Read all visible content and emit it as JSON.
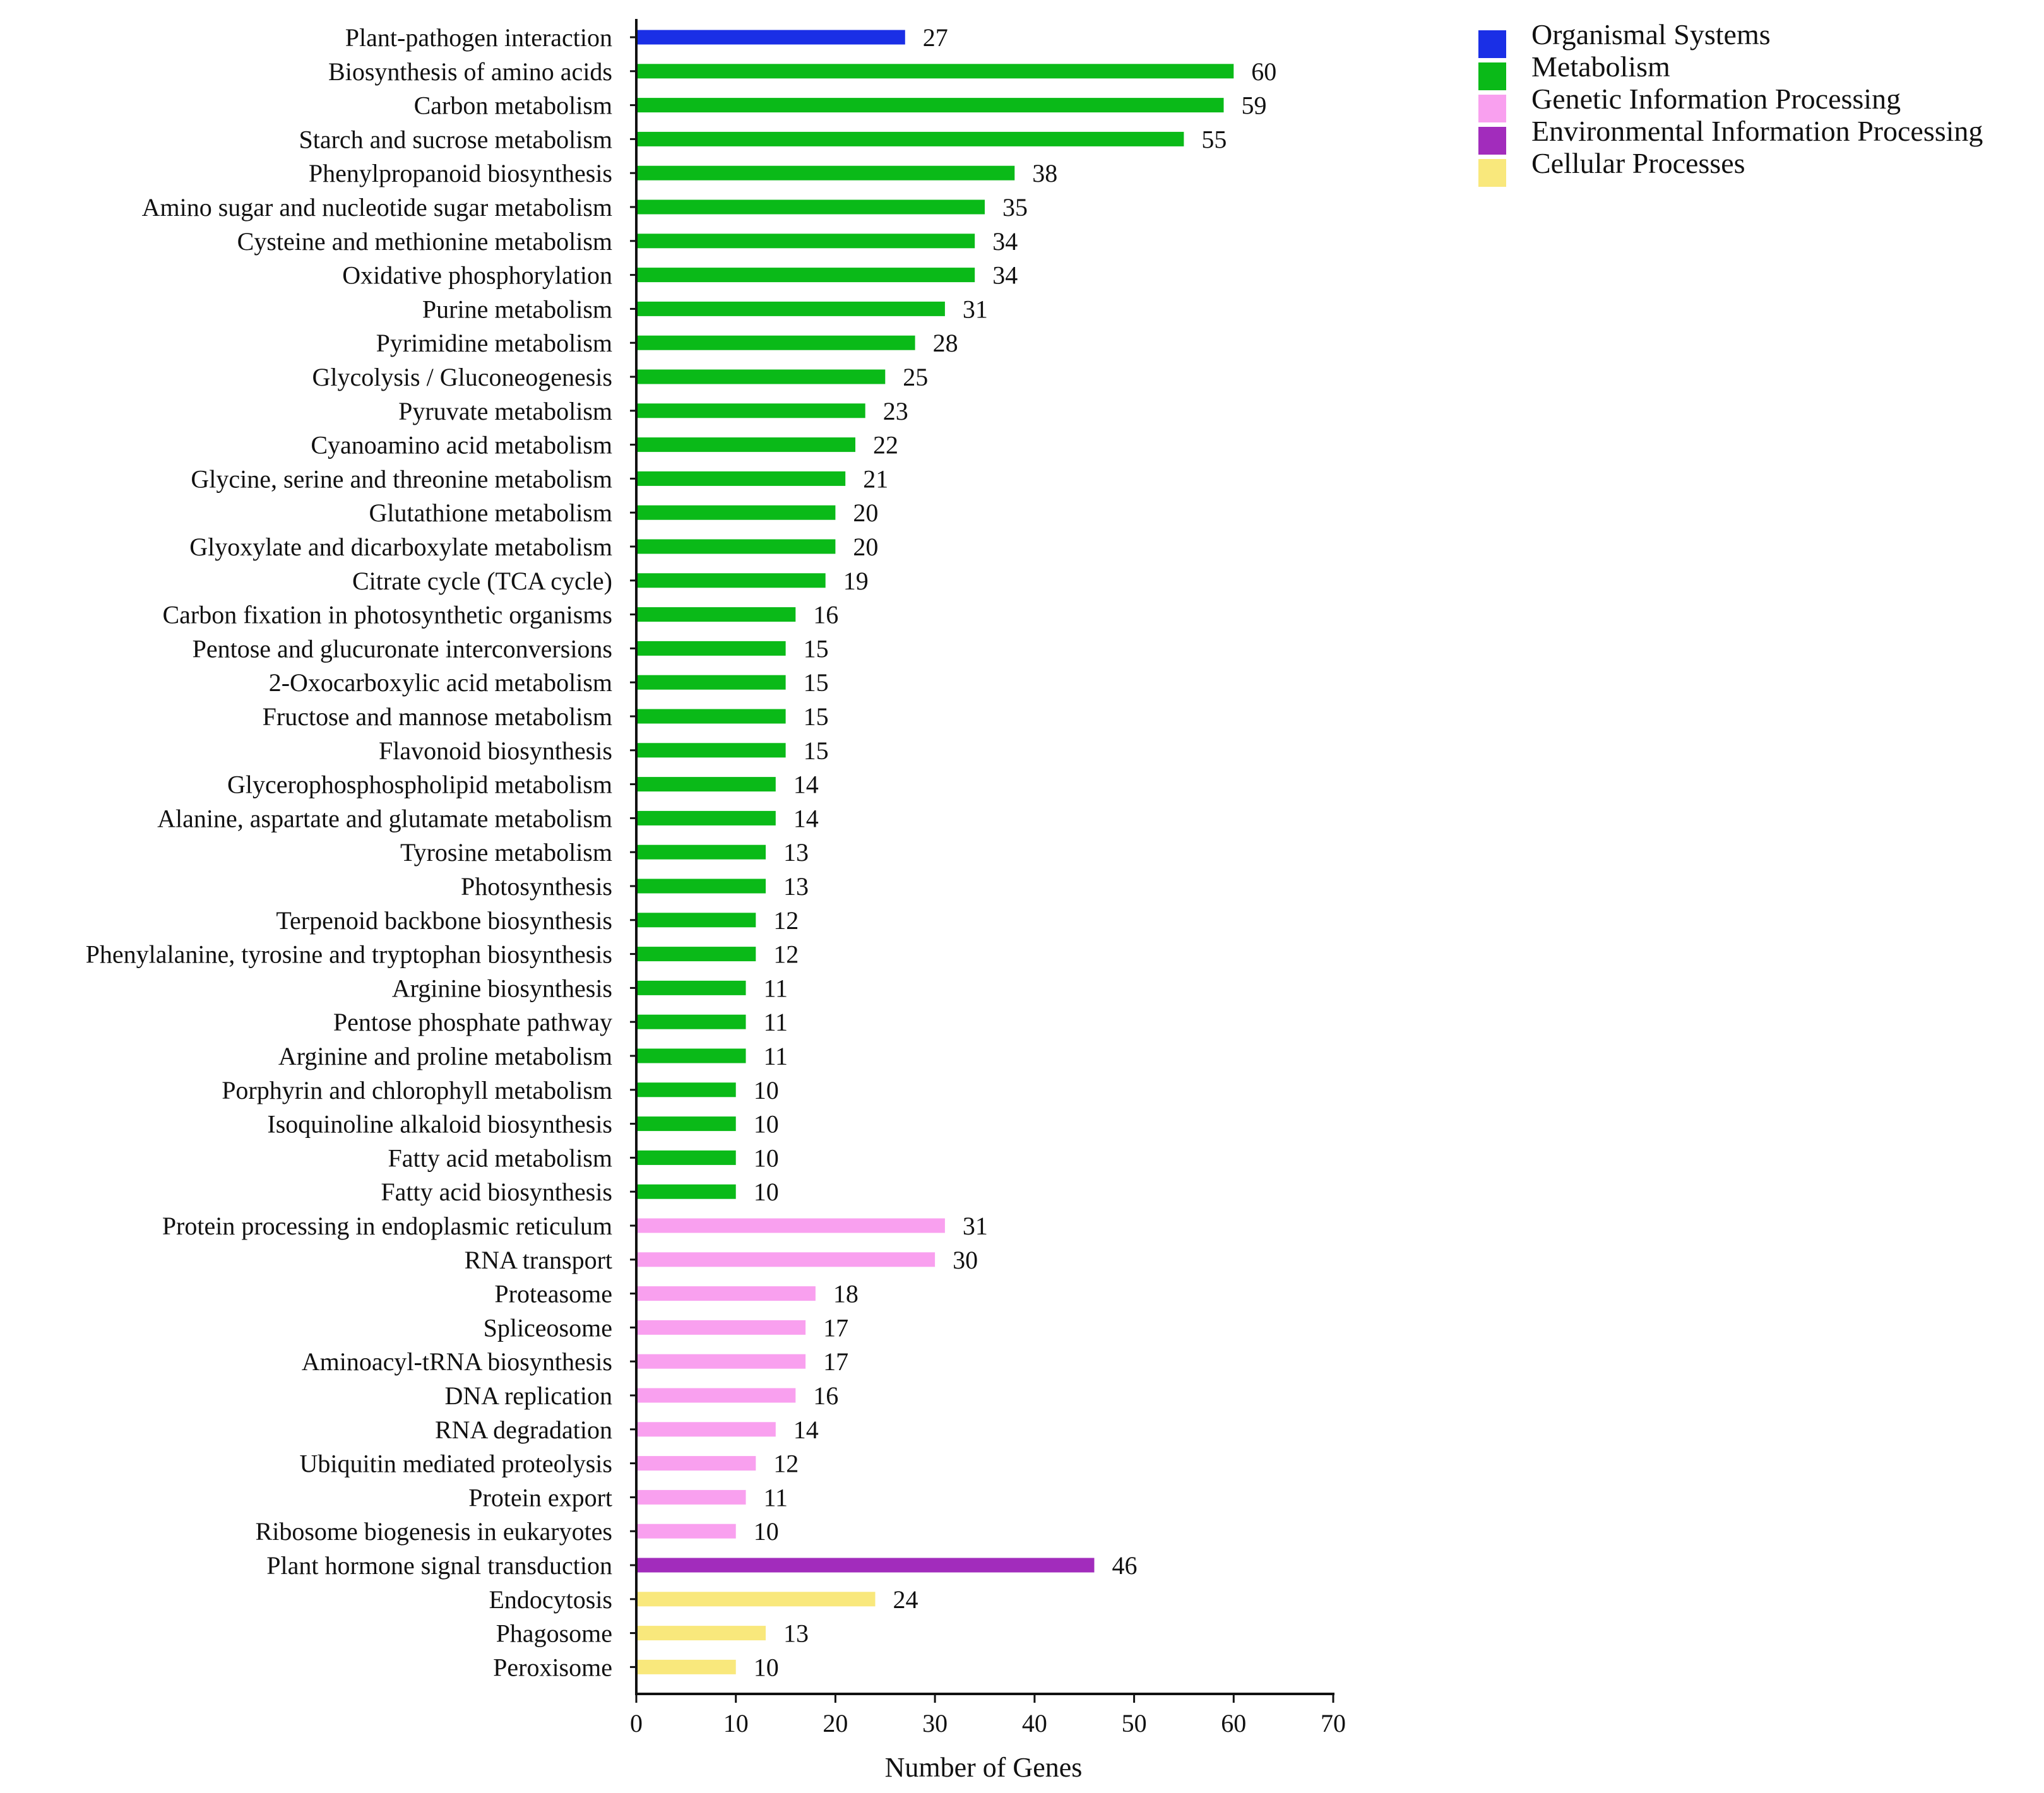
{
  "chart_data": {
    "type": "bar",
    "orientation": "horizontal",
    "xlabel": "Number of Genes",
    "xlim": [
      0,
      70
    ],
    "xticks": [
      0,
      10,
      20,
      30,
      40,
      50,
      60,
      70
    ],
    "grid": false,
    "legend_position": "top-right",
    "groups": [
      {
        "name": "Organismal Systems",
        "color": "#1a2fe6"
      },
      {
        "name": "Metabolism",
        "color": "#0aba18"
      },
      {
        "name": "Genetic Information Processing",
        "color": "#f9a0ef"
      },
      {
        "name": "Environmental Information Processing",
        "color": "#a22cbc"
      },
      {
        "name": "Cellular Processes",
        "color": "#f9e87c"
      }
    ],
    "bars": [
      {
        "label": "Plant-pathogen interaction",
        "value": 27,
        "group": "Organismal Systems"
      },
      {
        "label": "Biosynthesis of amino acids",
        "value": 60,
        "group": "Metabolism"
      },
      {
        "label": "Carbon metabolism",
        "value": 59,
        "group": "Metabolism"
      },
      {
        "label": "Starch and sucrose metabolism",
        "value": 55,
        "group": "Metabolism"
      },
      {
        "label": "Phenylpropanoid biosynthesis",
        "value": 38,
        "group": "Metabolism"
      },
      {
        "label": "Amino sugar and nucleotide sugar metabolism",
        "value": 35,
        "group": "Metabolism"
      },
      {
        "label": "Cysteine and methionine metabolism",
        "value": 34,
        "group": "Metabolism"
      },
      {
        "label": "Oxidative phosphorylation",
        "value": 34,
        "group": "Metabolism"
      },
      {
        "label": "Purine metabolism",
        "value": 31,
        "group": "Metabolism"
      },
      {
        "label": "Pyrimidine metabolism",
        "value": 28,
        "group": "Metabolism"
      },
      {
        "label": "Glycolysis / Gluconeogenesis",
        "value": 25,
        "group": "Metabolism"
      },
      {
        "label": "Pyruvate metabolism",
        "value": 23,
        "group": "Metabolism"
      },
      {
        "label": "Cyanoamino acid metabolism",
        "value": 22,
        "group": "Metabolism"
      },
      {
        "label": "Glycine, serine and threonine metabolism",
        "value": 21,
        "group": "Metabolism"
      },
      {
        "label": "Glutathione metabolism",
        "value": 20,
        "group": "Metabolism"
      },
      {
        "label": "Glyoxylate and dicarboxylate metabolism",
        "value": 20,
        "group": "Metabolism"
      },
      {
        "label": "Citrate cycle (TCA cycle)",
        "value": 19,
        "group": "Metabolism"
      },
      {
        "label": "Carbon fixation in photosynthetic organisms",
        "value": 16,
        "group": "Metabolism"
      },
      {
        "label": "Pentose and glucuronate interconversions",
        "value": 15,
        "group": "Metabolism"
      },
      {
        "label": "2-Oxocarboxylic acid metabolism",
        "value": 15,
        "group": "Metabolism"
      },
      {
        "label": "Fructose and mannose metabolism",
        "value": 15,
        "group": "Metabolism"
      },
      {
        "label": "Flavonoid biosynthesis",
        "value": 15,
        "group": "Metabolism"
      },
      {
        "label": "Glycerophosphospholipid metabolism",
        "value": 14,
        "group": "Metabolism"
      },
      {
        "label": "Alanine, aspartate and glutamate metabolism",
        "value": 14,
        "group": "Metabolism"
      },
      {
        "label": "Tyrosine metabolism",
        "value": 13,
        "group": "Metabolism"
      },
      {
        "label": "Photosynthesis",
        "value": 13,
        "group": "Metabolism"
      },
      {
        "label": "Terpenoid backbone biosynthesis",
        "value": 12,
        "group": "Metabolism"
      },
      {
        "label": "Phenylalanine, tyrosine and tryptophan biosynthesis",
        "value": 12,
        "group": "Metabolism"
      },
      {
        "label": "Arginine biosynthesis",
        "value": 11,
        "group": "Metabolism"
      },
      {
        "label": "Pentose phosphate pathway",
        "value": 11,
        "group": "Metabolism"
      },
      {
        "label": "Arginine and proline metabolism",
        "value": 11,
        "group": "Metabolism"
      },
      {
        "label": "Porphyrin and chlorophyll metabolism",
        "value": 10,
        "group": "Metabolism"
      },
      {
        "label": "Isoquinoline alkaloid biosynthesis",
        "value": 10,
        "group": "Metabolism"
      },
      {
        "label": "Fatty acid metabolism",
        "value": 10,
        "group": "Metabolism"
      },
      {
        "label": "Fatty acid biosynthesis",
        "value": 10,
        "group": "Metabolism"
      },
      {
        "label": "Protein processing in endoplasmic reticulum",
        "value": 31,
        "group": "Genetic Information Processing"
      },
      {
        "label": "RNA transport",
        "value": 30,
        "group": "Genetic Information Processing"
      },
      {
        "label": "Proteasome",
        "value": 18,
        "group": "Genetic Information Processing"
      },
      {
        "label": "Spliceosome",
        "value": 17,
        "group": "Genetic Information Processing"
      },
      {
        "label": "Aminoacyl-tRNA biosynthesis",
        "value": 17,
        "group": "Genetic Information Processing"
      },
      {
        "label": "DNA replication",
        "value": 16,
        "group": "Genetic Information Processing"
      },
      {
        "label": "RNA degradation",
        "value": 14,
        "group": "Genetic Information Processing"
      },
      {
        "label": "Ubiquitin mediated proteolysis",
        "value": 12,
        "group": "Genetic Information Processing"
      },
      {
        "label": "Protein export",
        "value": 11,
        "group": "Genetic Information Processing"
      },
      {
        "label": "Ribosome biogenesis in eukaryotes",
        "value": 10,
        "group": "Genetic Information Processing"
      },
      {
        "label": "Plant hormone signal transduction",
        "value": 46,
        "group": "Environmental Information Processing"
      },
      {
        "label": "Endocytosis",
        "value": 24,
        "group": "Cellular Processes"
      },
      {
        "label": "Phagosome",
        "value": 13,
        "group": "Cellular Processes"
      },
      {
        "label": "Peroxisome",
        "value": 10,
        "group": "Cellular Processes"
      }
    ]
  }
}
